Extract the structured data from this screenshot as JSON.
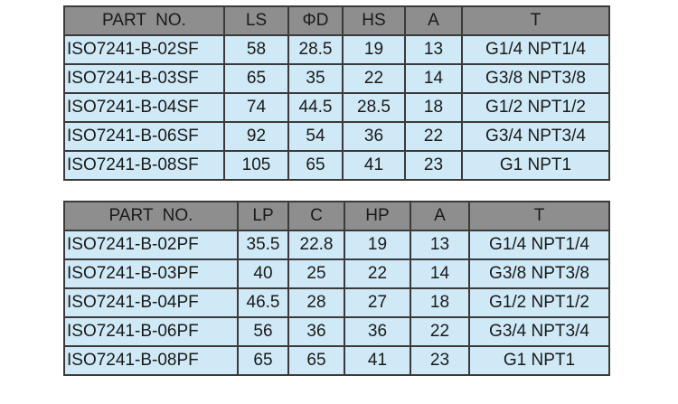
{
  "tables": [
    {
      "headers": [
        "PART  NO.",
        "LS",
        "ΦD",
        "HS",
        "A",
        "T"
      ],
      "rows": [
        [
          "ISO7241-B-02SF",
          "58",
          "28.5",
          "19",
          "13",
          "G1/4 NPT1/4"
        ],
        [
          "ISO7241-B-03SF",
          "65",
          "35",
          "22",
          "14",
          "G3/8 NPT3/8"
        ],
        [
          "ISO7241-B-04SF",
          "74",
          "44.5",
          "28.5",
          "18",
          "G1/2 NPT1/2"
        ],
        [
          "ISO7241-B-06SF",
          "92",
          "54",
          "36",
          "22",
          "G3/4 NPT3/4"
        ],
        [
          "ISO7241-B-08SF",
          "105",
          "65",
          "41",
          "23",
          "G1 NPT1"
        ]
      ]
    },
    {
      "headers": [
        "PART  NO.",
        "LP",
        "C",
        "HP",
        "A",
        "T"
      ],
      "rows": [
        [
          "ISO7241-B-02PF",
          "35.5",
          "22.8",
          "19",
          "13",
          "G1/4 NPT1/4"
        ],
        [
          "ISO7241-B-03PF",
          "40",
          "25",
          "22",
          "14",
          "G3/8 NPT3/8"
        ],
        [
          "ISO7241-B-04PF",
          "46.5",
          "28",
          "27",
          "18",
          "G1/2 NPT1/2"
        ],
        [
          "ISO7241-B-06PF",
          "56",
          "36",
          "36",
          "22",
          "G3/4 NPT3/4"
        ],
        [
          "ISO7241-B-08PF",
          "65",
          "65",
          "41",
          "23",
          "G1 NPT1"
        ]
      ]
    }
  ],
  "colors": {
    "header_bg": "#8e8e8e",
    "cell_bg": "#cfe9f6",
    "border": "#3a3a3a"
  }
}
